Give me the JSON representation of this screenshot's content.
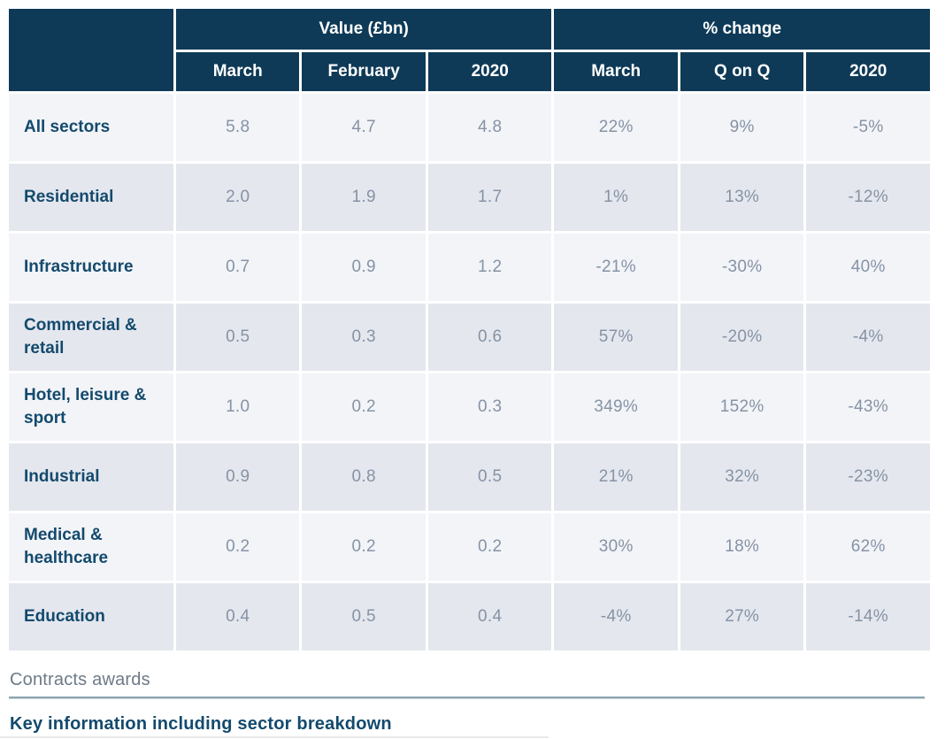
{
  "page": {
    "caption_small": "Contracts awards",
    "heading": "Key information including sector breakdown"
  },
  "table": {
    "group_headers": [
      {
        "label": "Value (£bn)"
      },
      {
        "label": "% change"
      }
    ],
    "column_headers": [
      "March",
      "February",
      "2020",
      "March",
      "Q on Q",
      "2020"
    ],
    "rows": [
      {
        "sector": "All sectors",
        "cells": [
          "5.8",
          "4.7",
          "4.8",
          "22%",
          "9%",
          "-5%"
        ]
      },
      {
        "sector": "Residential",
        "cells": [
          "2.0",
          "1.9",
          "1.7",
          "1%",
          "13%",
          "-12%"
        ]
      },
      {
        "sector": "Infrastructure",
        "cells": [
          "0.7",
          "0.9",
          "1.2",
          "-21%",
          "-30%",
          "40%"
        ]
      },
      {
        "sector": "Commercial & retail",
        "cells": [
          "0.5",
          "0.3",
          "0.6",
          "57%",
          "-20%",
          "-4%"
        ]
      },
      {
        "sector": "Hotel, leisure & sport",
        "cells": [
          "1.0",
          "0.2",
          "0.3",
          "349%",
          "152%",
          "-43%"
        ]
      },
      {
        "sector": "Industrial",
        "cells": [
          "0.9",
          "0.8",
          "0.5",
          "21%",
          "32%",
          "-23%"
        ]
      },
      {
        "sector": "Medical & healthcare",
        "cells": [
          "0.2",
          "0.2",
          "0.2",
          "30%",
          "18%",
          "62%"
        ]
      },
      {
        "sector": "Education",
        "cells": [
          "0.4",
          "0.5",
          "0.4",
          "-4%",
          "27%",
          "-14%"
        ]
      }
    ]
  },
  "colors": {
    "header_bg": "#0e3a57",
    "row_light_bg": "#f3f4f8",
    "row_dark_bg": "#e5e7ee",
    "sector_text": "#134a6d",
    "value_text": "#8593a5",
    "rule_line": "#8ea3b1",
    "caption_text": "#6e7a87"
  },
  "chart_data": {
    "type": "table",
    "title": "Key information including sector breakdown",
    "caption": "Contracts awards",
    "column_groups": [
      "Value (£bn)",
      "% change"
    ],
    "columns": [
      {
        "group": "Value (£bn)",
        "label": "March"
      },
      {
        "group": "Value (£bn)",
        "label": "February"
      },
      {
        "group": "Value (£bn)",
        "label": "2020"
      },
      {
        "group": "% change",
        "label": "March"
      },
      {
        "group": "% change",
        "label": "Q on Q"
      },
      {
        "group": "% change",
        "label": "2020"
      }
    ],
    "categories": [
      "All sectors",
      "Residential",
      "Infrastructure",
      "Commercial & retail",
      "Hotel, leisure & sport",
      "Industrial",
      "Medical & healthcare",
      "Education"
    ],
    "series": [
      {
        "name": "Value (£bn) — March",
        "values": [
          5.8,
          2.0,
          0.7,
          0.5,
          1.0,
          0.9,
          0.2,
          0.4
        ]
      },
      {
        "name": "Value (£bn) — February",
        "values": [
          4.7,
          1.9,
          0.9,
          0.3,
          0.2,
          0.8,
          0.2,
          0.5
        ]
      },
      {
        "name": "Value (£bn) — 2020",
        "values": [
          4.8,
          1.7,
          1.2,
          0.6,
          0.3,
          0.5,
          0.2,
          0.4
        ]
      },
      {
        "name": "% change — March",
        "values": [
          22,
          1,
          -21,
          57,
          349,
          21,
          30,
          -4
        ]
      },
      {
        "name": "% change — Q on Q",
        "values": [
          9,
          13,
          -30,
          -20,
          152,
          32,
          18,
          27
        ]
      },
      {
        "name": "% change — 2020",
        "values": [
          -5,
          -12,
          40,
          -4,
          -43,
          -23,
          62,
          -14
        ]
      }
    ]
  }
}
